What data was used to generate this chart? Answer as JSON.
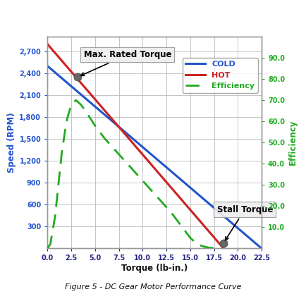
{
  "title": "Figure 5 - DC Gear Motor Performance Curve",
  "xlabel": "Torque (lb-in.)",
  "ylabel_left": "Speed (RPM)",
  "ylabel_right": "Efficiency",
  "xlim": [
    0,
    22.5
  ],
  "ylim_speed": [
    0,
    2900
  ],
  "ylim_efficiency": [
    0,
    100
  ],
  "x_ticks": [
    0.0,
    2.5,
    5.0,
    7.5,
    10.0,
    12.5,
    15.0,
    17.5,
    20.0,
    22.5
  ],
  "y_ticks_speed": [
    300,
    600,
    900,
    1200,
    1500,
    1800,
    2100,
    2400,
    2700
  ],
  "y_tick_labels_speed": [
    "300",
    "600",
    "900",
    "1,200",
    "1,500",
    "1,800",
    "2,100",
    "2,400",
    "2,700"
  ],
  "y_ticks_efficiency": [
    10.0,
    20.0,
    30.0,
    40.0,
    50.0,
    60.0,
    70.0,
    80.0,
    90.0
  ],
  "cold_torque": [
    0.0,
    22.5
  ],
  "cold_speed": [
    2500,
    0
  ],
  "hot_torque": [
    0.0,
    18.5
  ],
  "hot_speed": [
    2800,
    0
  ],
  "efficiency_torque": [
    0.0,
    0.3,
    0.8,
    1.5,
    2.0,
    2.5,
    3.0,
    3.5,
    4.0,
    5.0,
    6.0,
    7.0,
    8.0,
    9.0,
    10.0,
    11.0,
    12.0,
    13.0,
    14.0,
    15.0,
    15.5,
    16.0,
    16.5,
    17.0,
    17.5,
    18.0
  ],
  "efficiency_values": [
    0,
    2,
    15,
    45,
    60,
    68,
    70,
    68,
    65,
    58,
    52,
    47,
    42,
    37,
    32,
    27,
    22,
    17,
    11,
    5,
    3,
    1.5,
    0.8,
    0.3,
    0.1,
    0
  ],
  "max_rated_torque_point": [
    3.2,
    2350
  ],
  "stall_torque_point": [
    18.5,
    75
  ],
  "color_cold": "#2255cc",
  "color_hot": "#cc2222",
  "color_efficiency": "#22aa22",
  "color_ylabel_left": "#2255cc",
  "color_ylabel_right": "#22aa22",
  "color_yticks_left": "#2255cc",
  "color_yticks_right": "#22aa22",
  "color_xticks": "#222288",
  "grid_color": "#bbbbbb",
  "background_color": "#ffffff",
  "legend_labels": [
    "COLD",
    "HOT",
    "Efficiency"
  ],
  "legend_label_colors": [
    "#2255cc",
    "#cc2222",
    "#22aa22"
  ]
}
